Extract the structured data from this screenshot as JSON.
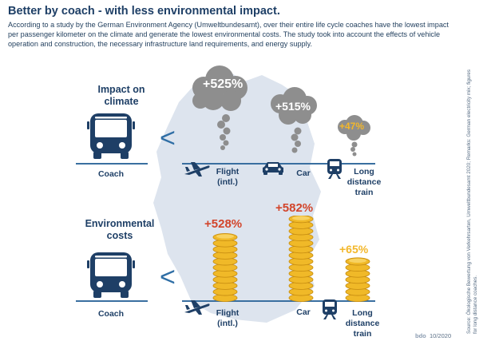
{
  "title": "Better by coach - with less environmental impact.",
  "intro": "According to a study by the German Environment Agency (Umweltbundesamt), over their entire life cycle coaches have the lowest impact per passenger kilometer on the climate and generate the lowest environmental costs. The study took into account the effects of vehicle operation and construction, the necessary infrastructure land requirements, and energy supply.",
  "climate": {
    "label_line1": "Impact on",
    "label_line2": "climate",
    "comparison": "<",
    "coach_label": "Coach",
    "flight": {
      "value": "+525%",
      "label_line1": "Flight",
      "label_line2": "(intl.)"
    },
    "car": {
      "value": "+515%",
      "label": "Car"
    },
    "train": {
      "value": "+47%",
      "label_line1": "Long",
      "label_line2": "distance",
      "label_line3": "train"
    }
  },
  "costs": {
    "label_line1": "Environmental",
    "label_line2": "costs",
    "comparison": "<",
    "coach_label": "Coach",
    "flight": {
      "value": "+528%",
      "label_line1": "Flight",
      "label_line2": "(intl.)"
    },
    "car": {
      "value": "+582%",
      "label": "Car"
    },
    "train": {
      "value": "+65%",
      "label_line1": "Long",
      "label_line2": "distance",
      "label_line3": "train"
    }
  },
  "source": "Source: Ökologische Bewertung von Verkehrsarten, Umweltbundesamt 2020; Remarks: German electricity mix; figures for long distance coaches.",
  "footer": {
    "logo": "bdo",
    "date": "10/2020"
  },
  "colors": {
    "navy": "#1e3f66",
    "blue": "#2f6ea5",
    "red": "#d2452b",
    "yellow": "#f3b72a",
    "coin": "#f0b928",
    "cloud": "#8e8e8e",
    "map": "#dde4ee"
  },
  "icons": [
    "bus-icon",
    "airplane-icon",
    "car-icon",
    "train-icon",
    "smoke-cloud-icon",
    "coin-stack-icon",
    "germany-map"
  ]
}
